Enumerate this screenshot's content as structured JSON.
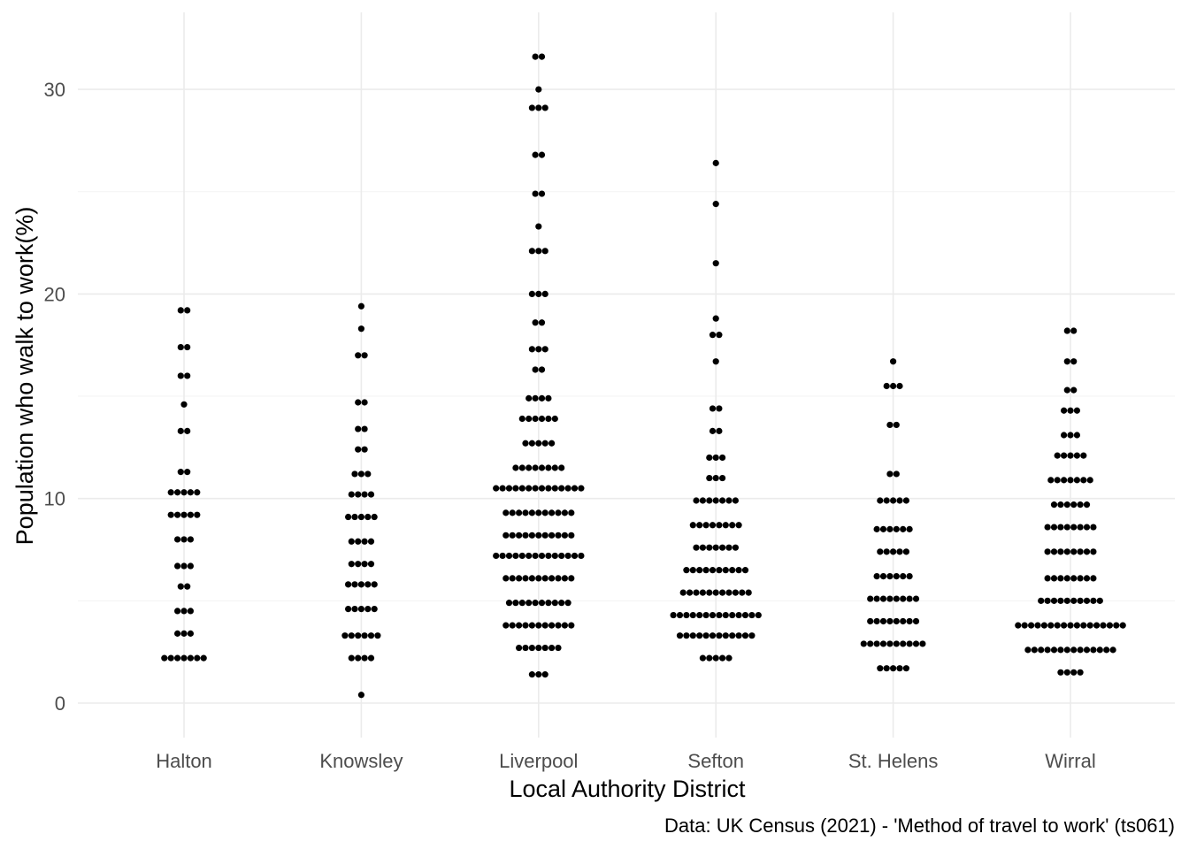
{
  "chart_data": {
    "type": "scatter",
    "subtype": "dot-strip (beeswarm)",
    "title": "",
    "xlabel": "Local Authority District",
    "ylabel": "Population who walk to work(%)",
    "caption": "Data: UK Census (2021) - 'Method of travel to work' (ts061)",
    "categories": [
      "Halton",
      "Knowsley",
      "Liverpool",
      "Sefton",
      "St. Helens",
      "Wirral"
    ],
    "ylim": [
      -1.8,
      33.5
    ],
    "yticks": [
      0,
      10,
      20,
      30
    ],
    "grid": true,
    "legend": "none",
    "point_color": "#000000",
    "series": [
      {
        "category": "Halton",
        "bins": [
          {
            "y": 2.2,
            "count": 7
          },
          {
            "y": 3.4,
            "count": 3
          },
          {
            "y": 4.5,
            "count": 3
          },
          {
            "y": 5.7,
            "count": 2
          },
          {
            "y": 6.7,
            "count": 3
          },
          {
            "y": 8.0,
            "count": 3
          },
          {
            "y": 9.2,
            "count": 5
          },
          {
            "y": 10.3,
            "count": 5
          },
          {
            "y": 11.3,
            "count": 2
          },
          {
            "y": 13.3,
            "count": 2
          },
          {
            "y": 14.6,
            "count": 1
          },
          {
            "y": 16.0,
            "count": 2
          },
          {
            "y": 17.4,
            "count": 2
          },
          {
            "y": 19.2,
            "count": 2
          }
        ]
      },
      {
        "category": "Knowsley",
        "bins": [
          {
            "y": 0.4,
            "count": 1
          },
          {
            "y": 2.2,
            "count": 4
          },
          {
            "y": 3.3,
            "count": 6
          },
          {
            "y": 4.6,
            "count": 5
          },
          {
            "y": 5.8,
            "count": 5
          },
          {
            "y": 6.8,
            "count": 4
          },
          {
            "y": 7.9,
            "count": 4
          },
          {
            "y": 9.1,
            "count": 5
          },
          {
            "y": 10.2,
            "count": 4
          },
          {
            "y": 11.2,
            "count": 3
          },
          {
            "y": 12.4,
            "count": 2
          },
          {
            "y": 13.4,
            "count": 2
          },
          {
            "y": 14.7,
            "count": 2
          },
          {
            "y": 17.0,
            "count": 2
          },
          {
            "y": 18.3,
            "count": 1
          },
          {
            "y": 19.4,
            "count": 1
          }
        ]
      },
      {
        "category": "Liverpool",
        "bins": [
          {
            "y": 1.4,
            "count": 3
          },
          {
            "y": 2.7,
            "count": 7
          },
          {
            "y": 3.8,
            "count": 11
          },
          {
            "y": 4.9,
            "count": 10
          },
          {
            "y": 6.1,
            "count": 11
          },
          {
            "y": 7.2,
            "count": 14
          },
          {
            "y": 8.2,
            "count": 11
          },
          {
            "y": 9.3,
            "count": 11
          },
          {
            "y": 10.5,
            "count": 14
          },
          {
            "y": 11.5,
            "count": 8
          },
          {
            "y": 12.7,
            "count": 5
          },
          {
            "y": 13.9,
            "count": 6
          },
          {
            "y": 14.9,
            "count": 4
          },
          {
            "y": 16.3,
            "count": 2
          },
          {
            "y": 17.3,
            "count": 3
          },
          {
            "y": 18.6,
            "count": 2
          },
          {
            "y": 20.0,
            "count": 3
          },
          {
            "y": 22.1,
            "count": 3
          },
          {
            "y": 23.3,
            "count": 1
          },
          {
            "y": 24.9,
            "count": 2
          },
          {
            "y": 26.8,
            "count": 2
          },
          {
            "y": 29.1,
            "count": 3
          },
          {
            "y": 30.0,
            "count": 1
          },
          {
            "y": 31.6,
            "count": 2
          }
        ]
      },
      {
        "category": "Sefton",
        "bins": [
          {
            "y": 2.2,
            "count": 5
          },
          {
            "y": 3.3,
            "count": 12
          },
          {
            "y": 4.3,
            "count": 14
          },
          {
            "y": 5.4,
            "count": 11
          },
          {
            "y": 6.5,
            "count": 10
          },
          {
            "y": 7.6,
            "count": 7
          },
          {
            "y": 8.7,
            "count": 8
          },
          {
            "y": 9.9,
            "count": 7
          },
          {
            "y": 11.0,
            "count": 3
          },
          {
            "y": 12.0,
            "count": 3
          },
          {
            "y": 13.3,
            "count": 2
          },
          {
            "y": 14.4,
            "count": 2
          },
          {
            "y": 16.7,
            "count": 1
          },
          {
            "y": 18.0,
            "count": 2
          },
          {
            "y": 18.8,
            "count": 1
          },
          {
            "y": 21.5,
            "count": 1
          },
          {
            "y": 24.4,
            "count": 1
          },
          {
            "y": 26.4,
            "count": 1
          }
        ]
      },
      {
        "category": "St. Helens",
        "bins": [
          {
            "y": 1.7,
            "count": 5
          },
          {
            "y": 2.9,
            "count": 10
          },
          {
            "y": 4.0,
            "count": 8
          },
          {
            "y": 5.1,
            "count": 8
          },
          {
            "y": 6.2,
            "count": 6
          },
          {
            "y": 7.4,
            "count": 5
          },
          {
            "y": 8.5,
            "count": 6
          },
          {
            "y": 9.9,
            "count": 5
          },
          {
            "y": 11.2,
            "count": 2
          },
          {
            "y": 13.6,
            "count": 2
          },
          {
            "y": 15.5,
            "count": 3
          },
          {
            "y": 16.7,
            "count": 1
          }
        ]
      },
      {
        "category": "Wirral",
        "bins": [
          {
            "y": 1.5,
            "count": 4
          },
          {
            "y": 2.6,
            "count": 14
          },
          {
            "y": 3.8,
            "count": 17
          },
          {
            "y": 5.0,
            "count": 10
          },
          {
            "y": 6.1,
            "count": 8
          },
          {
            "y": 7.4,
            "count": 8
          },
          {
            "y": 8.6,
            "count": 8
          },
          {
            "y": 9.7,
            "count": 6
          },
          {
            "y": 10.9,
            "count": 7
          },
          {
            "y": 12.1,
            "count": 5
          },
          {
            "y": 13.1,
            "count": 3
          },
          {
            "y": 14.3,
            "count": 3
          },
          {
            "y": 15.3,
            "count": 2
          },
          {
            "y": 16.7,
            "count": 2
          },
          {
            "y": 18.2,
            "count": 2
          }
        ]
      }
    ]
  }
}
